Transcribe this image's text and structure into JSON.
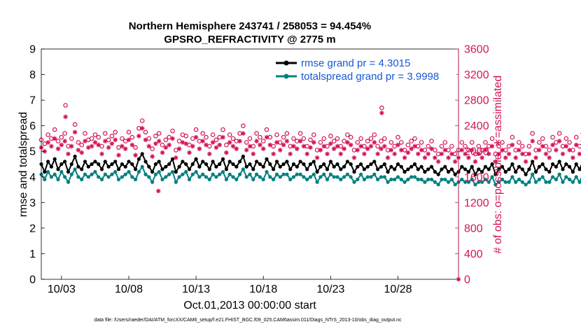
{
  "chart_data": {
    "type": "line",
    "title_line1": "Northern Hemisphere 243741 / 258053 = 94.454%",
    "title_line2": "GPSRO_REFRACTIVITY @ 2775 m",
    "ylabel_left": "rmse and totalspread",
    "ylabel_right": "# of obs: o=possible; ∗=assimilated",
    "xlabel": "Oct.01,2013 00:00:00 start",
    "footer": "data file: /Users/raeder/DAI/ATM_forcXX/CAM6_setup/f.e21.FHIST_BGC.f09_025.CAM6assim.011/Diags_NTrS_2013-10/obs_diag_output.nc",
    "left_axis": {
      "ylim": [
        0,
        9
      ],
      "ticks": [
        "0",
        "1",
        "2",
        "3",
        "4",
        "5",
        "6",
        "7",
        "8",
        "9"
      ]
    },
    "right_axis": {
      "ylim": [
        0,
        3600
      ],
      "ticks": [
        "0",
        "400",
        "800",
        "1200",
        "1600",
        "2000",
        "2400",
        "2800",
        "3200",
        "3600"
      ]
    },
    "x_axis": {
      "xlim": [
        1.5,
        32.5
      ],
      "tick_days": [
        3,
        8,
        13,
        18,
        23,
        28
      ],
      "tick_labels": [
        "10/03",
        "10/08",
        "10/13",
        "10/18",
        "10/23",
        "10/28"
      ]
    },
    "colors": {
      "rmse": "#000000",
      "spread": "#008080",
      "obs": "#d4145a",
      "legend_text": "#1558d6"
    },
    "series": [
      {
        "name": "rmse",
        "legend_label": "rmse grand pr = 4.3015",
        "x_start": 1.5,
        "x_step": 0.25,
        "values": [
          4.5,
          4.2,
          4.6,
          4.4,
          4.7,
          4.3,
          4.5,
          4.6,
          4.2,
          4.5,
          4.8,
          4.4,
          4.3,
          4.6,
          4.4,
          4.5,
          4.6,
          4.5,
          4.3,
          4.6,
          4.4,
          4.5,
          4.6,
          4.3,
          4.5,
          4.4,
          4.6,
          4.5,
          4.3,
          4.7,
          4.9,
          4.6,
          4.4,
          4.2,
          4.5,
          4.6,
          4.3,
          4.4,
          4.5,
          4.7,
          4.2,
          4.4,
          4.6,
          4.5,
          4.3,
          4.5,
          4.7,
          4.4,
          4.6,
          4.5,
          4.3,
          4.6,
          4.4,
          4.5,
          4.7,
          4.3,
          4.6,
          4.5,
          4.4,
          4.6,
          4.8,
          4.4,
          4.5,
          4.3,
          4.6,
          4.5,
          4.4,
          4.7,
          4.5,
          4.3,
          4.6,
          4.4,
          4.5,
          4.6,
          4.3,
          4.5,
          4.4,
          4.6,
          4.5,
          4.3,
          4.5,
          4.6,
          4.2,
          4.4,
          4.5,
          4.3,
          4.6,
          4.4,
          4.5,
          4.3,
          4.4,
          4.6,
          4.5,
          4.2,
          4.4,
          4.5,
          4.3,
          4.4,
          4.5,
          4.6,
          4.3,
          4.4,
          4.5,
          4.2,
          4.4,
          4.3,
          4.5,
          4.4,
          4.2,
          4.3,
          4.4,
          4.5,
          4.3,
          4.4,
          4.2,
          4.3,
          4.4,
          4.2,
          4.1,
          4.3,
          4.4,
          4.2,
          4.3,
          4.1,
          4.2,
          4.4,
          4.3,
          4.2,
          4.4,
          4.1,
          4.3,
          4.2,
          4.4,
          4.3,
          4.5,
          4.1,
          4.3,
          4.4,
          4.2,
          4.3,
          4.5,
          4.2,
          4.4,
          4.3,
          4.1,
          4.3,
          4.6,
          4.2,
          4.4,
          4.5,
          4.3,
          4.2,
          4.5,
          4.4,
          4.6,
          4.3,
          4.5,
          4.4,
          4.2,
          4.5,
          4.3,
          4.6,
          4.4,
          4.5,
          4.3,
          4.6,
          4.4,
          4.3,
          4.5,
          4.7,
          4.4,
          4.6,
          4.5,
          4.3,
          4.6,
          4.4,
          4.5,
          4.7,
          4.3,
          4.5,
          4.6,
          4.4,
          4.8,
          4.5,
          4.3,
          4.6,
          4.4,
          4.5,
          4.6,
          4.2,
          4.4,
          4.5,
          4.3,
          4.2,
          4.4,
          4.5,
          4.3,
          4.4,
          4.6,
          4.5,
          4.2,
          4.3,
          4.5,
          4.3,
          4.2,
          4.3
        ]
      },
      {
        "name": "totalspread",
        "legend_label": "totalspread grand pr = 3.9998",
        "x_start": 1.5,
        "x_step": 0.25,
        "values": [
          4.1,
          3.9,
          4.2,
          4.0,
          4.1,
          3.9,
          4.2,
          4.0,
          3.8,
          4.1,
          4.3,
          4.0,
          3.9,
          4.1,
          4.0,
          4.1,
          4.2,
          4.0,
          3.9,
          4.1,
          4.0,
          4.1,
          4.2,
          3.9,
          4.0,
          4.1,
          4.2,
          4.0,
          3.9,
          4.2,
          4.4,
          4.1,
          4.0,
          3.8,
          4.1,
          4.2,
          3.9,
          4.0,
          4.1,
          4.2,
          3.8,
          4.0,
          4.1,
          4.2,
          3.9,
          4.1,
          4.2,
          4.0,
          4.1,
          4.0,
          3.9,
          4.1,
          4.0,
          4.1,
          4.2,
          3.9,
          4.1,
          4.0,
          3.9,
          4.1,
          4.3,
          4.0,
          4.1,
          3.9,
          4.1,
          4.0,
          3.9,
          4.2,
          4.0,
          3.9,
          4.1,
          4.0,
          4.1,
          4.1,
          3.9,
          4.0,
          4.1,
          4.1,
          4.0,
          3.9,
          4.0,
          4.1,
          3.8,
          4.0,
          4.1,
          3.9,
          4.1,
          4.0,
          4.0,
          3.9,
          4.0,
          4.1,
          4.0,
          3.8,
          3.9,
          4.1,
          3.9,
          4.0,
          4.0,
          4.1,
          3.9,
          4.0,
          4.0,
          3.8,
          3.9,
          3.9,
          4.0,
          3.9,
          3.8,
          3.9,
          4.0,
          4.0,
          3.9,
          3.9,
          3.8,
          3.9,
          3.9,
          3.8,
          3.7,
          3.9,
          3.9,
          3.8,
          3.9,
          3.7,
          3.8,
          3.9,
          3.8,
          3.8,
          3.9,
          3.7,
          3.8,
          3.8,
          3.9,
          3.8,
          4.0,
          3.7,
          3.8,
          3.9,
          3.8,
          3.8,
          4.0,
          3.8,
          3.9,
          3.8,
          3.7,
          3.8,
          4.1,
          3.8,
          3.9,
          4.0,
          3.8,
          3.8,
          4.0,
          3.9,
          4.1,
          3.8,
          4.0,
          3.9,
          3.8,
          4.0,
          3.8,
          4.1,
          3.9,
          4.0,
          3.8,
          4.1,
          3.9,
          3.8,
          4.0,
          4.2,
          3.9,
          4.1,
          4.0,
          3.8,
          4.1,
          3.9,
          4.0,
          4.2,
          3.8,
          4.0,
          4.1,
          3.9,
          4.3,
          4.0,
          3.8,
          4.1,
          3.9,
          4.0,
          4.1,
          3.8,
          3.9,
          4.0,
          3.8,
          3.8,
          3.9,
          4.0,
          3.8,
          3.9,
          4.1,
          4.0,
          3.8,
          3.8,
          4.0,
          3.8,
          3.8,
          3.8
        ]
      },
      {
        "name": "obs_possible",
        "marker": "circle",
        "x_start": 1.5,
        "x_step": 0.25,
        "values": [
          2180,
          2120,
          2260,
          2200,
          2340,
          2160,
          2220,
          2280,
          2080,
          2200,
          2420,
          2140,
          2100,
          2280,
          2180,
          2200,
          2260,
          2220,
          2080,
          2280,
          2180,
          2240,
          2300,
          2060,
          2200,
          2160,
          2300,
          2220,
          2060,
          2360,
          2480,
          2300,
          2200,
          2040,
          2240,
          2280,
          2100,
          2180,
          2220,
          2320,
          2020,
          2160,
          2260,
          2240,
          2100,
          2200,
          2340,
          2160,
          2280,
          2220,
          2080,
          2260,
          2180,
          2220,
          2340,
          2100,
          2260,
          2200,
          2160,
          2280,
          2400,
          2140,
          2200,
          2080,
          2280,
          2220,
          2160,
          2340,
          2220,
          2080,
          2260,
          2140,
          2220,
          2280,
          2080,
          2200,
          2160,
          2280,
          2200,
          2080,
          2180,
          2260,
          2020,
          2140,
          2200,
          2080,
          2240,
          2160,
          2200,
          2080,
          2160,
          2260,
          2220,
          2020,
          2140,
          2200,
          2080,
          2160,
          2200,
          2260,
          2080,
          2160,
          2200,
          2020,
          2140,
          2080,
          2220,
          2140,
          2020,
          2100,
          2160,
          2200,
          2080,
          2140,
          2020,
          2080,
          2160,
          2020,
          1960,
          2080,
          2140,
          2020,
          2080,
          1960,
          2020,
          2140,
          2080,
          2020,
          2140,
          1960,
          2080,
          2020,
          2140,
          2080,
          2200,
          1960,
          2080,
          2140,
          2020,
          2080,
          2220,
          2020,
          2140,
          2080,
          1960,
          2080,
          2280,
          2020,
          2140,
          2200,
          2080,
          2020,
          2220,
          2140,
          2280,
          2080,
          2200,
          2140,
          2020,
          2220,
          2080,
          2280,
          2140,
          2200,
          2080,
          2280,
          2140,
          2080,
          2200,
          2340,
          2140,
          2280,
          2220,
          2080,
          2280,
          2140,
          2200,
          2340,
          2080,
          2200,
          2280,
          2140,
          2400,
          2200,
          2080,
          2280,
          2140,
          2200,
          2280,
          2020,
          2140,
          2200,
          2080,
          2020,
          2140,
          2200,
          2080,
          2140,
          2280,
          2220,
          2020,
          2080,
          2200,
          2080,
          2020,
          2080
        ]
      },
      {
        "name": "obs_assimilated",
        "marker": "asterisk",
        "x_start": 1.5,
        "x_step": 0.25,
        "values": [
          2060,
          2000,
          2140,
          2080,
          2200,
          2040,
          2100,
          2160,
          1960,
          2080,
          2300,
          2020,
          1980,
          2160,
          2060,
          2080,
          2140,
          2100,
          1960,
          2160,
          2060,
          2120,
          2180,
          1940,
          2080,
          2040,
          2180,
          2100,
          1940,
          2240,
          2360,
          2180,
          2080,
          1920,
          2120,
          2160,
          1980,
          2060,
          2100,
          2200,
          1900,
          2040,
          2140,
          2120,
          1980,
          2080,
          2220,
          2040,
          2160,
          2100,
          1960,
          2140,
          2060,
          2100,
          2220,
          1980,
          2140,
          2080,
          2040,
          2160,
          2280,
          2020,
          2080,
          1960,
          2160,
          2100,
          2040,
          2220,
          2100,
          1960,
          2140,
          2020,
          2100,
          2160,
          1960,
          2080,
          2040,
          2160,
          2080,
          1960,
          2060,
          2140,
          1900,
          2020,
          2080,
          1960,
          2120,
          2040,
          2080,
          1960,
          2040,
          2140,
          2100,
          1900,
          2020,
          2080,
          1960,
          2040,
          2080,
          2140,
          1960,
          2040,
          2080,
          1900,
          2020,
          1960,
          2100,
          2020,
          1900,
          1980,
          2040,
          2080,
          1960,
          2020,
          1900,
          1960,
          2040,
          1900,
          1840,
          1960,
          2020,
          1900,
          1960,
          1840,
          1900,
          2020,
          1960,
          1900,
          2020,
          1840,
          1960,
          1900,
          2020,
          1960,
          2080,
          1840,
          1960,
          2020,
          1900,
          1960,
          2100,
          1900,
          2020,
          1960,
          1840,
          1960,
          2160,
          1900,
          2020,
          2080,
          1960,
          1900,
          2100,
          2020,
          2160,
          1960,
          2080,
          2020,
          1900,
          2100,
          1960,
          2160,
          2020,
          2080,
          1960,
          2160,
          2020,
          1960,
          2080,
          2220,
          2020,
          2160,
          2100,
          1960,
          2160,
          2020,
          2080,
          2220,
          1960,
          2080,
          2160,
          2020,
          2280,
          2080,
          1960,
          2160,
          2020,
          2080,
          2160,
          1900,
          2020,
          2080,
          1960,
          1900,
          2020,
          2080,
          1960,
          2020,
          2160,
          2100,
          1900,
          1960,
          2080,
          1960,
          1900,
          1960
        ]
      }
    ],
    "outlier_points": [
      {
        "series": "obs_possible",
        "x": 3.3,
        "y": 2720
      },
      {
        "series": "obs_assimilated",
        "x": 3.3,
        "y": 2540
      },
      {
        "series": "obs_possible",
        "x": 26.8,
        "y": 2680
      },
      {
        "series": "obs_assimilated",
        "x": 26.8,
        "y": 2600
      },
      {
        "series": "obs_assimilated",
        "x": 10.2,
        "y": 1380
      },
      {
        "series": "obs_assimilated",
        "x": 32.5,
        "y": 0
      }
    ]
  }
}
